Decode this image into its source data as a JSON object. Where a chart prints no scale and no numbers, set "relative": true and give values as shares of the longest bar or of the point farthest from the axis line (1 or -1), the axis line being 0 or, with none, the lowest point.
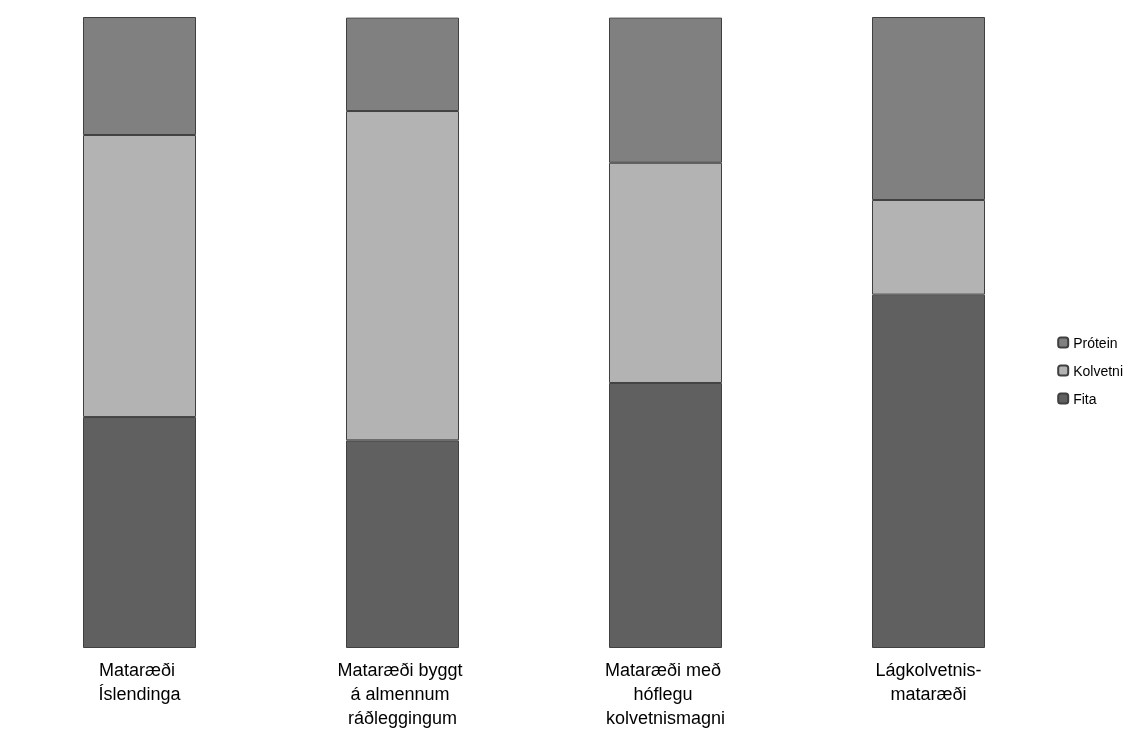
{
  "chart_data": {
    "type": "bar",
    "stacked": true,
    "relative": true,
    "legend": "right",
    "categories": [
      "Mataræði Íslendinga",
      "Mataræði byggt á almennum ráðleggingum",
      "Mataræði með hóflegu kolvetnismagni",
      "Lágkolvetnis-mataræði"
    ],
    "series": [
      {
        "name": "Fita",
        "color": "#606060",
        "values": [
          0.366,
          0.329,
          0.42,
          0.56
        ]
      },
      {
        "name": "Kolvetni",
        "color": "#b3b3b3",
        "values": [
          0.447,
          0.522,
          0.349,
          0.15
        ]
      },
      {
        "name": "Prótein",
        "color": "#808080",
        "values": [
          0.187,
          0.148,
          0.23,
          0.29
        ]
      }
    ]
  }
}
